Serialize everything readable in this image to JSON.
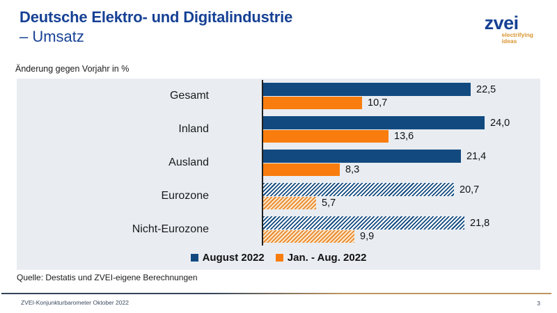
{
  "header": {
    "title_line1": "Deutsche Elektro- und Digitalindustrie",
    "title_line2": "– Umsatz",
    "logo": {
      "name": "zvei",
      "tagline_line1": "electrifying",
      "tagline_line2": "ideas"
    }
  },
  "subtitle": "Änderung gegen Vorjahr in %",
  "chart_data": {
    "type": "bar",
    "orientation": "horizontal",
    "title": "Deutsche Elektro- und Digitalindustrie – Umsatz",
    "xlabel": "Änderung gegen Vorjahr in %",
    "ylabel": "",
    "xlim": [
      0,
      30
    ],
    "grid": false,
    "legend_position": "bottom",
    "categories": [
      "Gesamt",
      "Inland",
      "Ausland",
      "Eurozone",
      "Nicht-Eurozone"
    ],
    "series": [
      {
        "name": "August 2022",
        "values": [
          22.5,
          24.0,
          21.4,
          20.7,
          21.8
        ],
        "labels": [
          "22,5",
          "24,0",
          "21,4",
          "20,7",
          "21,8"
        ]
      },
      {
        "name": "Jan. - Aug. 2022",
        "values": [
          10.7,
          13.6,
          8.3,
          5.7,
          9.9
        ],
        "labels": [
          "10,7",
          "13,6",
          "8,3",
          "5,7",
          "9,9"
        ]
      }
    ],
    "hatched_categories": [
      "Eurozone",
      "Nicht-Eurozone"
    ]
  },
  "source_note": "Quelle: Destatis und ZVEI-eigene Berechnungen",
  "footer": {
    "left": "ZVEI-Konjunkturbarometer Oktober 2022",
    "page_number": "3"
  },
  "colors": {
    "title_blue": "#164194",
    "bar_blue": "#124A80",
    "bar_orange": "#F87D0E",
    "hatch_orange_stripe": "#E8882B",
    "panel_bg": "#E9EDF2",
    "logo_tagline_orange": "#D9952F",
    "footer_line_left": "#34455A",
    "footer_line_right": "#BF9660"
  }
}
